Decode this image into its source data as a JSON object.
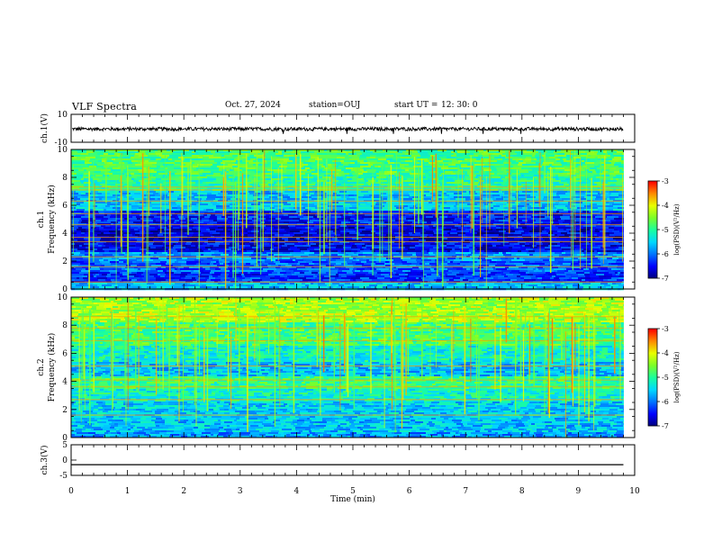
{
  "header": {
    "title": "VLF Spectra",
    "date": "Oct. 27, 2024",
    "station": "station=OUJ",
    "start_label": "start  UT  =",
    "start_time": "12: 30: 0"
  },
  "chart_data": [
    {
      "type": "line",
      "id": "ch1_waveform",
      "ylabel": "ch.1(V)",
      "ylim": [
        -10,
        10
      ],
      "y_tick_labels": [
        "10",
        "-10"
      ],
      "xlim": [
        0,
        10
      ],
      "data_extent_x": [
        0,
        9.8
      ],
      "series": [
        {
          "values_mean": -0.5,
          "amplitude_range": [
            -1.5,
            1.0
          ],
          "color": "#000000"
        }
      ]
    },
    {
      "type": "heatmap",
      "id": "ch1_spectrogram",
      "ylabel": "ch.1",
      "ylabel2": "Frequency (kHz)",
      "ylim": [
        0,
        10
      ],
      "y_tick_labels": [
        "0",
        "2",
        "4",
        "6",
        "8",
        "10"
      ],
      "xlim": [
        0,
        10
      ],
      "data_extent_x": [
        0,
        9.8
      ],
      "colorbar": {
        "min": -7,
        "max": -3,
        "tick_labels": [
          "-3",
          "-4",
          "-5",
          "-6",
          "-7"
        ],
        "label": "log(PSD)(V²/Hz)"
      },
      "bands_log_psd": [
        {
          "f": [
            0,
            0.4
          ],
          "v": -5.6
        },
        {
          "f": [
            0.4,
            1.2
          ],
          "v": -6.3
        },
        {
          "f": [
            1.2,
            2.0
          ],
          "v": -6.1
        },
        {
          "f": [
            2.0,
            2.6
          ],
          "v": -5.9
        },
        {
          "f": [
            2.6,
            3.4
          ],
          "v": -6.5
        },
        {
          "f": [
            3.4,
            4.4
          ],
          "v": -6.6
        },
        {
          "f": [
            4.4,
            5.6
          ],
          "v": -6.4
        },
        {
          "f": [
            5.6,
            7.0
          ],
          "v": -5.6
        },
        {
          "f": [
            7.0,
            8.2
          ],
          "v": -5.0
        },
        {
          "f": [
            8.2,
            10.0
          ],
          "v": -4.8
        }
      ],
      "narrowband_lines_khz": [
        0.5,
        1.6,
        2.3,
        3.4,
        3.7,
        4.6,
        5.4,
        6.3,
        7.1,
        7.3
      ]
    },
    {
      "type": "heatmap",
      "id": "ch2_spectrogram",
      "ylabel": "ch.2",
      "ylabel2": "Frequency (kHz)",
      "ylim": [
        0,
        10
      ],
      "y_tick_labels": [
        "0",
        "2",
        "4",
        "6",
        "8",
        "10"
      ],
      "xlim": [
        0,
        10
      ],
      "data_extent_x": [
        0,
        9.8
      ],
      "colorbar": {
        "min": -7,
        "max": -3,
        "tick_labels": [
          "-3",
          "-4",
          "-5",
          "-6",
          "-7"
        ],
        "label": "log(PSD)(V²/Hz)"
      },
      "bands_log_psd": [
        {
          "f": [
            0,
            0.4
          ],
          "v": -5.8
        },
        {
          "f": [
            0.4,
            1.4
          ],
          "v": -5.6
        },
        {
          "f": [
            1.4,
            2.6
          ],
          "v": -5.5
        },
        {
          "f": [
            2.6,
            3.4
          ],
          "v": -5.2
        },
        {
          "f": [
            3.4,
            4.4
          ],
          "v": -4.9
        },
        {
          "f": [
            4.4,
            5.4
          ],
          "v": -5.6
        },
        {
          "f": [
            5.4,
            6.6
          ],
          "v": -5.2
        },
        {
          "f": [
            6.6,
            8.2
          ],
          "v": -4.8
        },
        {
          "f": [
            8.2,
            10.0
          ],
          "v": -4.3
        }
      ],
      "narrowband_lines_khz": [
        1.6,
        2.7,
        3.6,
        4.1,
        5.1,
        6.9,
        7.8,
        8.6
      ]
    },
    {
      "type": "line",
      "id": "ch3_waveform",
      "ylabel": "ch.3(V)",
      "ylim": [
        -5,
        5
      ],
      "y_tick_labels": [
        "5",
        "0",
        "-5"
      ],
      "xlim": [
        0,
        10
      ],
      "data_extent_x": [
        0,
        9.8
      ],
      "series": [
        {
          "values_mean": -1.5,
          "color": "#000000"
        }
      ]
    }
  ],
  "x_axis": {
    "label": "Time  (min)",
    "tick_labels": [
      "0",
      "1",
      "2",
      "3",
      "4",
      "5",
      "6",
      "7",
      "8",
      "9",
      "10"
    ]
  },
  "colors": {
    "colormap": [
      "#00007a",
      "#0000ff",
      "#0073ff",
      "#00d8ff",
      "#19ff9e",
      "#7bff28",
      "#e8ff00",
      "#ff8a00",
      "#ff0000",
      "#ffffff"
    ]
  }
}
